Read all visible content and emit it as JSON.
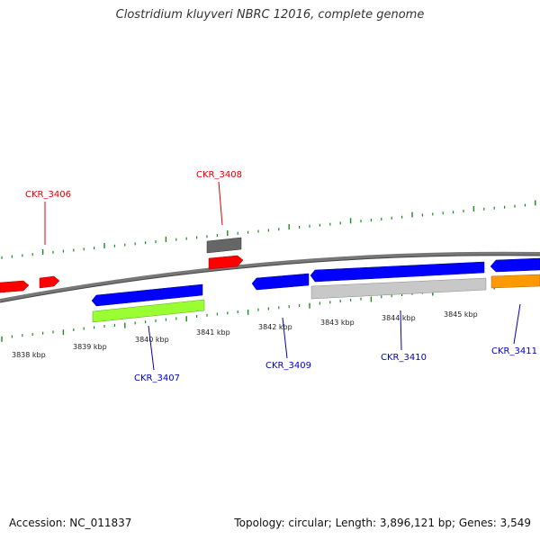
{
  "title": "Clostridium kluyveri NBRC 12016, complete genome",
  "footer": {
    "accession": "Accession: NC_011837",
    "summary": "Topology: circular; Length: 3,896,121 bp; Genes: 3,549"
  },
  "colors": {
    "backbone": "#777777",
    "tick": "#1a8a1a",
    "red": "#ff0000",
    "blue": "#0000ff",
    "lime": "#99ff33",
    "gray": "#c8c8c8",
    "darkgray": "#666666",
    "orange": "#ff9900",
    "label_red": "#dd0000",
    "label_blue": "#0000bb"
  },
  "scale_labels": [
    "3838 kbp",
    "3839 kbp",
    "3840 kbp",
    "3841 kbp",
    "3842 kbp",
    "3843 kbp",
    "3844 kbp",
    "3845 kbp"
  ],
  "gene_labels": {
    "ckr_3406": "CKR_3406",
    "ckr_3408": "CKR_3408",
    "ckr_3407": "CKR_3407",
    "ckr_3409": "CKR_3409",
    "ckr_3410": "CKR_3410",
    "ckr_3411": "CKR_3411"
  }
}
